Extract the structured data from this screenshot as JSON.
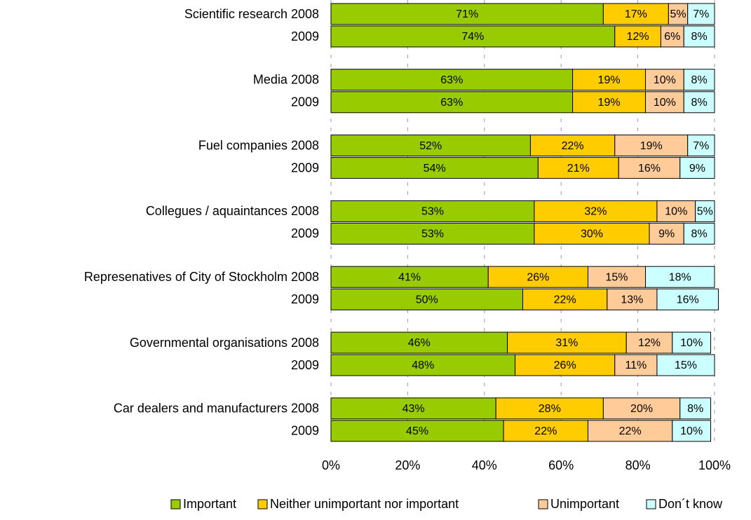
{
  "chart_data": {
    "type": "stacked_barh",
    "categories": [
      "Scientific research 2008",
      "2009",
      "Media 2008",
      "2009",
      "Fuel companies 2008",
      "2009",
      "Collegues / aquaintances 2008",
      "2009",
      "Represenatives of City of Stockholm 2008",
      "2009",
      "Governmental organisations 2008",
      "2009",
      "Car dealers and manufacturers 2008",
      "2009"
    ],
    "series": [
      {
        "name": "Important",
        "color": "#99cc00",
        "values": [
          71,
          74,
          63,
          63,
          52,
          54,
          53,
          53,
          41,
          50,
          46,
          48,
          43,
          45
        ],
        "value_labels": [
          "71%",
          "74%",
          "63%",
          "63%",
          "52%",
          "54%",
          "53%",
          "53%",
          "41%",
          "50%",
          "46%",
          "48%",
          "43%",
          "45%"
        ]
      },
      {
        "name": "Neither unimportant nor important",
        "color": "#ffcc00",
        "values": [
          17,
          12,
          19,
          19,
          22,
          21,
          32,
          30,
          26,
          22,
          31,
          26,
          28,
          22
        ],
        "value_labels": [
          "17%",
          "12%",
          "19%",
          "19%",
          "22%",
          "21%",
          "32%",
          "30%",
          "26%",
          "22%",
          "31%",
          "26%",
          "28%",
          "22%"
        ]
      },
      {
        "name": "Unimportant",
        "color": "#ffcc99",
        "values": [
          5,
          6,
          10,
          10,
          19,
          16,
          10,
          9,
          15,
          13,
          12,
          11,
          20,
          22
        ],
        "value_labels": [
          "5%",
          "6%",
          "10%",
          "10%",
          "19%",
          "16%",
          "10%",
          "9%",
          "15%",
          "13%",
          "12%",
          "11%",
          "20%",
          "22%"
        ]
      },
      {
        "name": "Don´t know",
        "color": "#ccffff",
        "values": [
          7,
          8,
          8,
          8,
          7,
          9,
          5,
          8,
          18,
          16,
          10,
          15,
          8,
          10
        ],
        "value_labels": [
          "7%",
          "8%",
          "8%",
          "8%",
          "7%",
          "9%",
          "5%",
          "8%",
          "18%",
          "16%",
          "10%",
          "15%",
          "8%",
          "10%"
        ]
      }
    ],
    "xlim": [
      0,
      100
    ],
    "xticks": [
      {
        "value": 0,
        "label": "0%"
      },
      {
        "value": 20,
        "label": "20%"
      },
      {
        "value": 40,
        "label": "40%"
      },
      {
        "value": 60,
        "label": "60%"
      },
      {
        "value": 80,
        "label": "80%"
      },
      {
        "value": 100,
        "label": "100%"
      }
    ],
    "grid": true,
    "legend": "bottom"
  }
}
